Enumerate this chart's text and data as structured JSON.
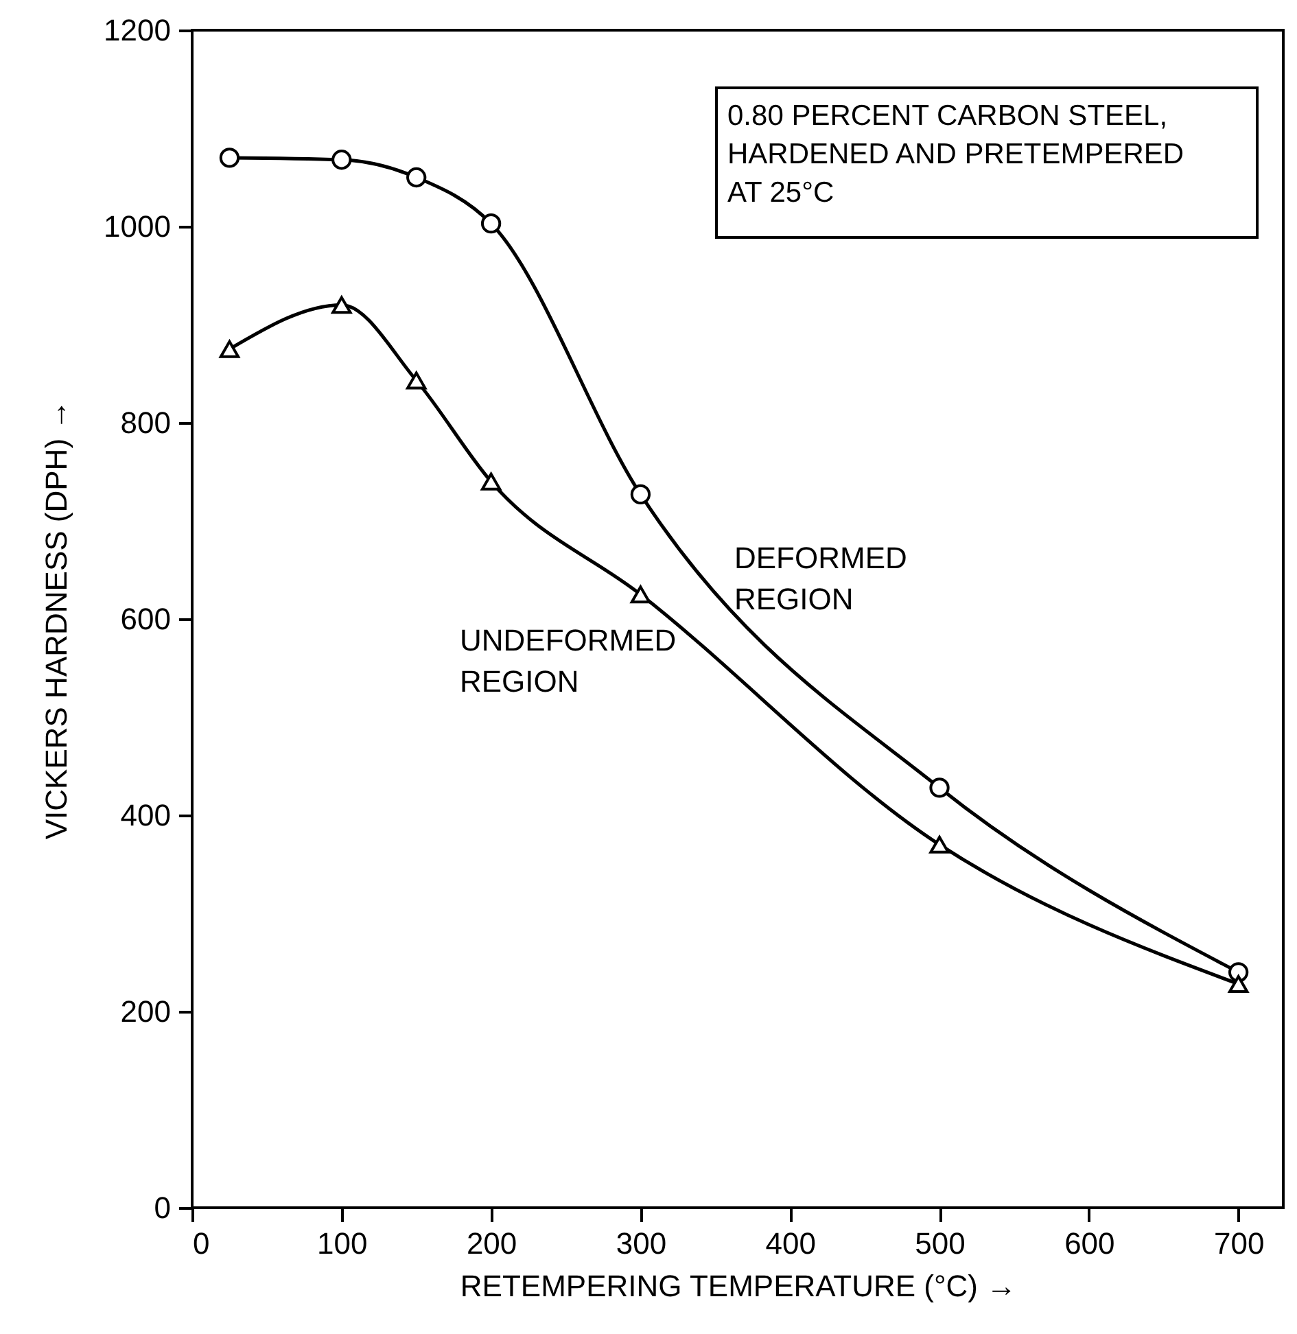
{
  "chart_data": {
    "type": "line",
    "xlabel": "RETEMPERING TEMPERATURE (°C) →",
    "ylabel": "VICKERS HARDNESS (DPH) →",
    "x": [
      25,
      100,
      150,
      200,
      300,
      500,
      700
    ],
    "series": [
      {
        "name": "DEFORMED REGION",
        "color": "#000000",
        "marker": "circle",
        "values": [
          1070,
          1068,
          1050,
          1003,
          727,
          428,
          240
        ]
      },
      {
        "name": "UNDEFORMED REGION",
        "color": "#000000",
        "marker": "triangle",
        "values": [
          875,
          920,
          843,
          740,
          625,
          370,
          228
        ]
      }
    ],
    "xlim": [
      0,
      730
    ],
    "xticks": [
      0,
      100,
      200,
      300,
      400,
      500,
      600,
      700
    ],
    "ylim": [
      0,
      1200
    ],
    "yticks": [
      0,
      200,
      400,
      600,
      800,
      1000,
      1200
    ],
    "annotations": [
      "0.80 PERCENT CARBON STEEL,\nHARDENED AND PRETEMPERED\nAT 25°C"
    ],
    "line_style": "solid",
    "grid": false
  }
}
